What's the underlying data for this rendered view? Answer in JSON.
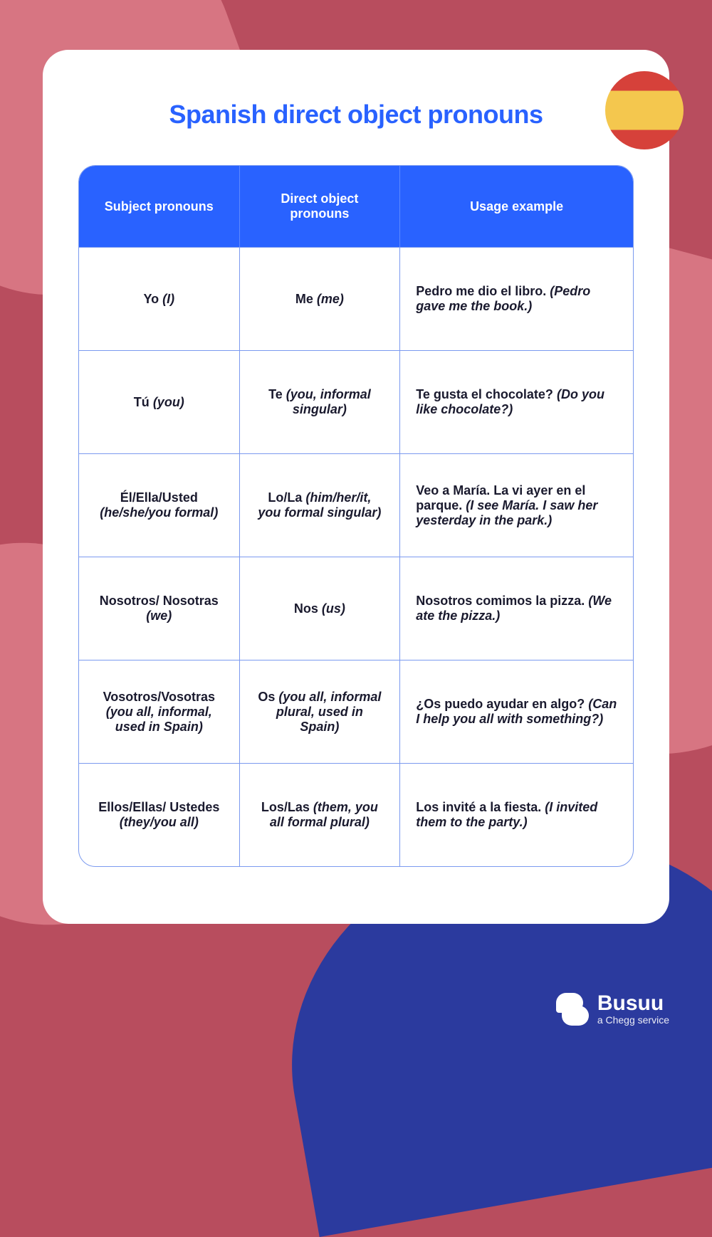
{
  "title": "Spanish direct object pronouns",
  "colors": {
    "background": "#b84d5e",
    "backgroundLight": "#d77582",
    "accentDark": "#2b3a9e",
    "cardBg": "#ffffff",
    "headerBg": "#2962ff",
    "headerText": "#ffffff",
    "border": "#7b9aef",
    "text": "#1a1a2e"
  },
  "flag": {
    "country": "Spain",
    "stripes": [
      "#d6413a",
      "#f4c74e",
      "#d6413a"
    ]
  },
  "table": {
    "columns": [
      "Subject pronouns",
      "Direct object pronouns",
      "Usage example"
    ],
    "rows": [
      {
        "subject_main": "Yo",
        "subject_paren": "(I)",
        "object_main": "Me",
        "object_paren": "(me)",
        "example_es": "Pedro me dio el libro.",
        "example_en": "(Pedro gave me the book.)"
      },
      {
        "subject_main": "Tú",
        "subject_paren": "(you)",
        "object_main": "Te",
        "object_paren": "(you, informal singular)",
        "example_es": "Te gusta el chocolate?",
        "example_en": "(Do you like chocolate?)"
      },
      {
        "subject_main": "Él/Ella/Usted",
        "subject_paren": "(he/she/you formal)",
        "object_main": "Lo/La",
        "object_paren": "(him/her/it, you formal singular)",
        "example_es": "Veo a María. La vi ayer en el parque.",
        "example_en": "(I see María. I saw her yesterday in the park.)"
      },
      {
        "subject_main": "Nosotros/ Nosotras",
        "subject_paren": "(we)",
        "object_main": "Nos",
        "object_paren": "(us)",
        "example_es": "Nosotros comimos la pizza.",
        "example_en": "(We ate the pizza.)"
      },
      {
        "subject_main": "Vosotros/Vosotras",
        "subject_paren": "(you all, informal, used in Spain)",
        "object_main": "Os",
        "object_paren": "(you all, informal plural, used in Spain)",
        "example_es": "¿Os puedo ayudar en algo?",
        "example_en": "(Can I help you all with something?)"
      },
      {
        "subject_main": "Ellos/Ellas/ Ustedes",
        "subject_paren": "(they/you all)",
        "object_main": "Los/Las",
        "object_paren": "(them, you all formal plural)",
        "example_es": "Los invité a la fiesta.",
        "example_en": "(I invited them to the party.)"
      }
    ]
  },
  "footer": {
    "brand": "Busuu",
    "tagline": "a Chegg service"
  }
}
